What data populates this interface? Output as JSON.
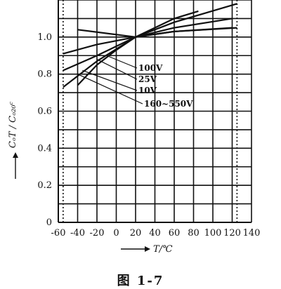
{
  "chart_data": {
    "type": "line",
    "xlabel": "T/℃",
    "ylabel": "CₒT / Cₒ₂₀ᶜ",
    "xlim": [
      -60,
      140
    ],
    "ylim": [
      0,
      1.2
    ],
    "x_ticks": [
      -60,
      -40,
      -20,
      0,
      20,
      40,
      60,
      80,
      100,
      120,
      140
    ],
    "x_tick_labels": [
      "-60",
      "-40",
      "-20",
      "0",
      "20",
      "40",
      "60",
      "80",
      "100",
      "120",
      "140"
    ],
    "y_ticks": [
      0,
      0.2,
      0.4,
      0.6,
      0.8,
      1.0
    ],
    "y_tick_labels": [
      "0",
      "0.2",
      "0.4",
      "0.6",
      "0.8",
      "1.0"
    ],
    "grid": true,
    "series": [
      {
        "name": "100V",
        "x": [
          -55,
          -20,
          20,
          60,
          120
        ],
        "y": [
          0.91,
          0.96,
          1.0,
          1.03,
          1.05
        ]
      },
      {
        "name": "25V",
        "x": [
          -55,
          -20,
          20,
          60,
          120
        ],
        "y": [
          0.82,
          0.9,
          1.0,
          1.05,
          1.1
        ]
      },
      {
        "name": "10V",
        "x": [
          -55,
          -20,
          20,
          60,
          125
        ],
        "y": [
          0.73,
          0.87,
          1.0,
          1.08,
          1.18
        ]
      },
      {
        "name": "160~550V",
        "x": [
          -40,
          -20,
          0,
          20,
          60,
          85
        ],
        "y": [
          0.74,
          0.85,
          0.93,
          1.0,
          1.1,
          1.14
        ]
      }
    ],
    "extra_series": {
      "x": [
        -40,
        20,
        60,
        125
      ],
      "y": [
        1.04,
        1.0,
        1.03,
        1.05
      ]
    },
    "vertical_dashed_lines_x": [
      -55,
      125
    ],
    "caption": "图 1-7"
  }
}
